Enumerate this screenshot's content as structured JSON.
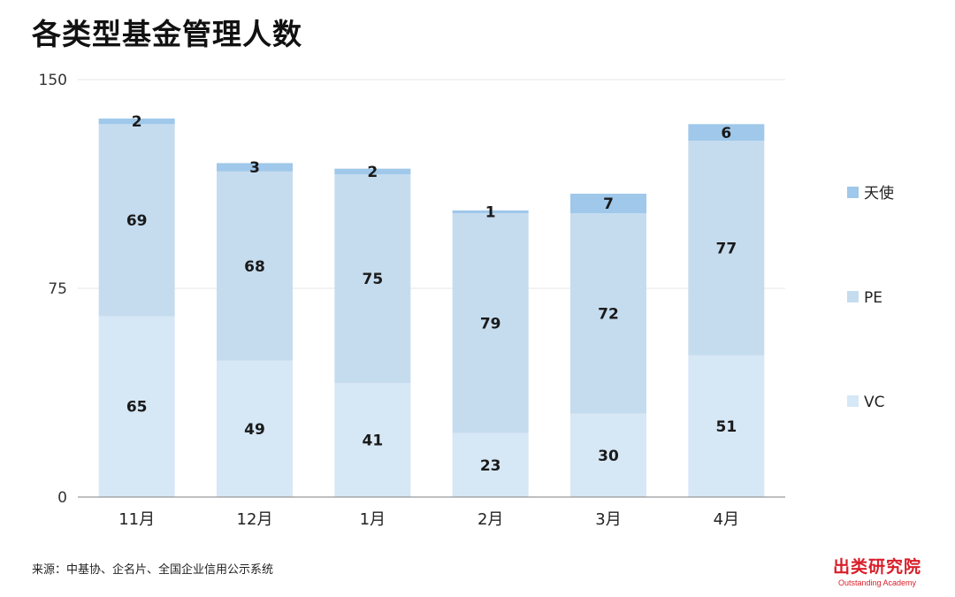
{
  "title": "各类型基金管理人数",
  "source": "来源：中基协、企名片、全国企业信用公示系统",
  "brand": {
    "name_cn": "出类研究院",
    "name_en": "Outstanding Academy"
  },
  "colors": {
    "vc": "#d6e7f6",
    "pe": "#c5dcef",
    "angel": "#9fc8ea",
    "axis": "#999999",
    "grid": "#e6e6e6",
    "brand": "#d91e2a"
  },
  "chart_data": {
    "type": "bar",
    "stacked": true,
    "categories": [
      "11月",
      "12月",
      "1月",
      "2月",
      "3月",
      "4月"
    ],
    "series": [
      {
        "name": "VC",
        "values": [
          65,
          49,
          41,
          23,
          30,
          51
        ]
      },
      {
        "name": "PE",
        "values": [
          69,
          68,
          75,
          79,
          72,
          77
        ]
      },
      {
        "name": "天使",
        "values": [
          2,
          3,
          2,
          1,
          7,
          6
        ]
      }
    ],
    "ylim": [
      0,
      150
    ],
    "yticks": [
      0,
      75,
      150
    ],
    "grid": true,
    "legend_position": "right",
    "legend_order": [
      "天使",
      "PE",
      "VC"
    ],
    "data_labels": true,
    "title": "各类型基金管理人数",
    "xlabel": "",
    "ylabel": ""
  }
}
